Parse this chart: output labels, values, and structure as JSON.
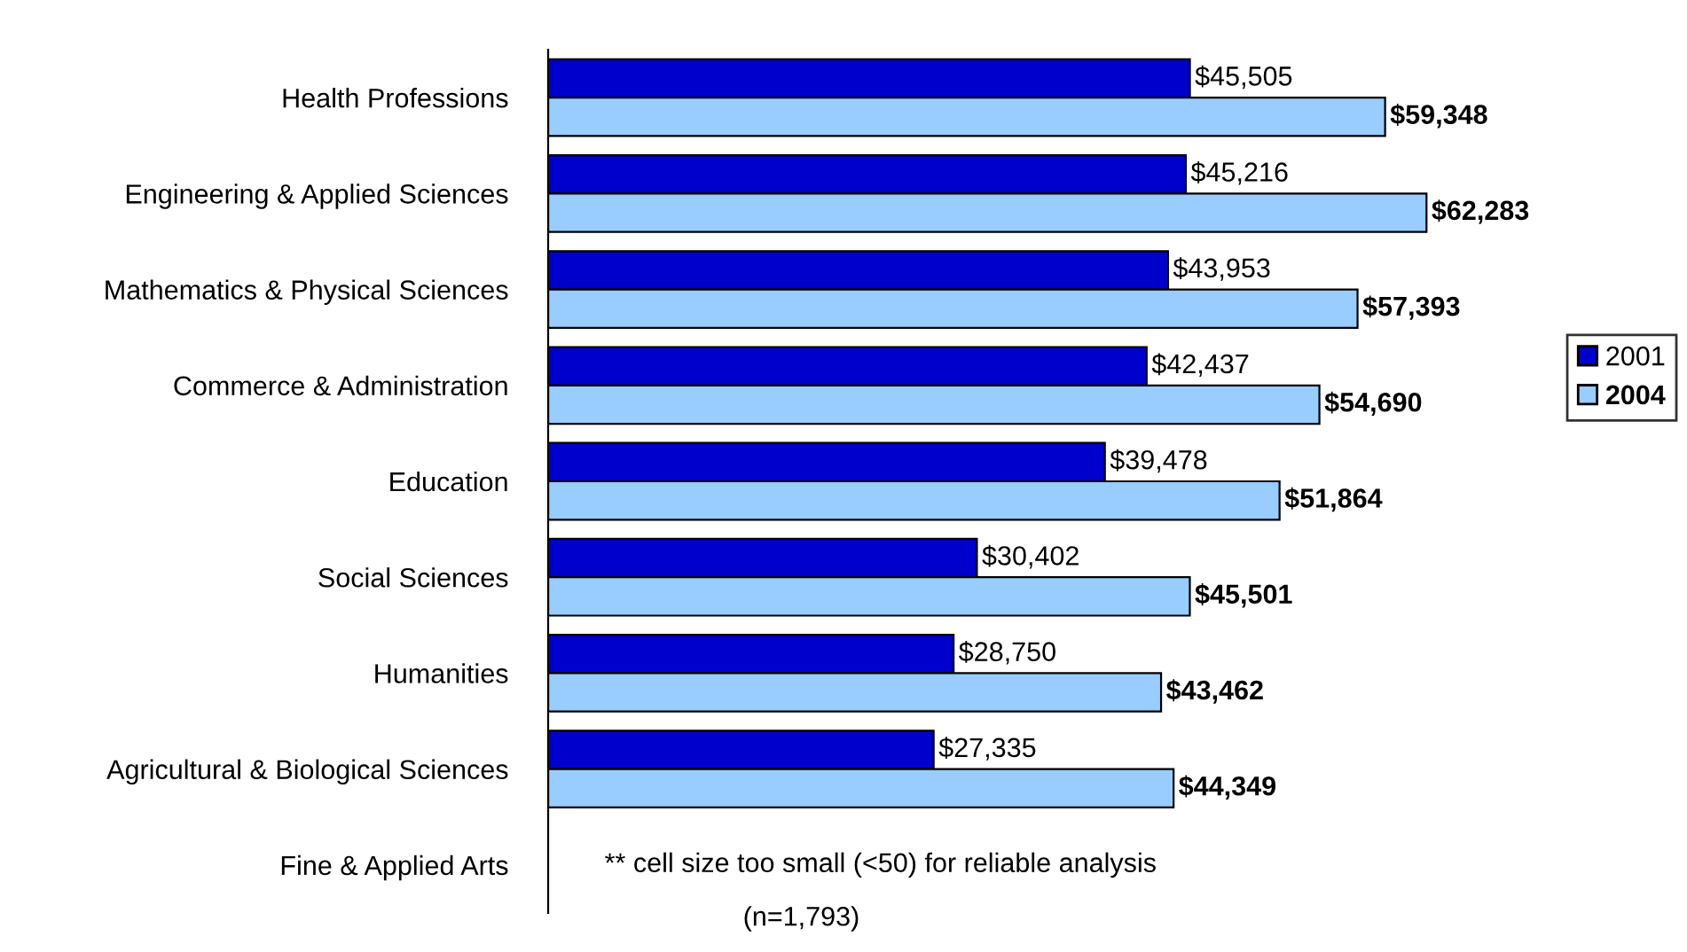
{
  "chart_data": {
    "type": "bar",
    "orientation": "horizontal",
    "categories": [
      "Health Professions",
      "Engineering & Applied Sciences",
      "Mathematics & Physical Sciences",
      "Commerce & Administration",
      "Education",
      "Social Sciences",
      "Humanities",
      "Agricultural & Biological Sciences",
      "Fine & Applied Arts"
    ],
    "series": [
      {
        "name": "2001",
        "color": "#0000cc",
        "values": [
          45505,
          45216,
          43953,
          42437,
          39478,
          30402,
          28750,
          27335,
          null
        ],
        "value_labels": [
          "$45,505",
          "$45,216",
          "$43,953",
          "$42,437",
          "$39,478",
          "$30,402",
          "$28,750",
          "$27,335",
          null
        ]
      },
      {
        "name": "2004",
        "color": "#99ccff",
        "values": [
          59348,
          62283,
          57393,
          54690,
          51864,
          45501,
          43462,
          44349,
          null
        ],
        "value_labels": [
          "$59,348",
          "$62,283",
          "$57,393",
          "$54,690",
          "$51,864",
          "$45,501",
          "$43,462",
          "$44,349",
          null
        ]
      }
    ],
    "xlim": [
      0,
      80000
    ],
    "tick_labels": "y",
    "grid": false,
    "legend": "right",
    "annotations": [
      "** cell size too small (<50) for reliable analysis",
      "(n=1,793)"
    ]
  }
}
